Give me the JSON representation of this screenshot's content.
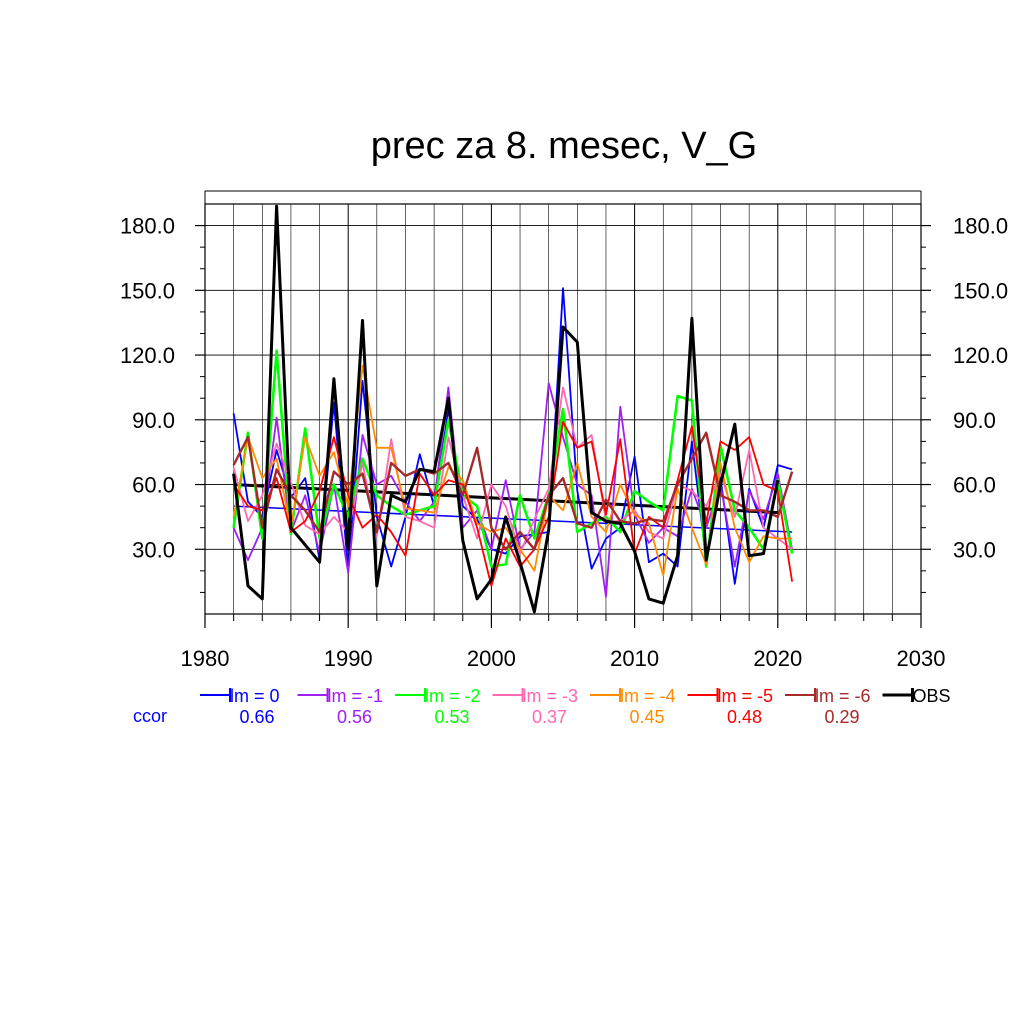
{
  "chart_data": {
    "type": "line",
    "title": "prec za 8. mesec, V_G",
    "xlabel": "",
    "ylabel": "",
    "xlim": [
      1980,
      2030
    ],
    "ylim": [
      0,
      190
    ],
    "x_ticks": [
      "1980",
      "1990",
      "2000",
      "2010",
      "2020",
      "2030"
    ],
    "y_ticks": [
      "30.0",
      "60.0",
      "90.0",
      "120.0",
      "150.0",
      "180.0"
    ],
    "grid": true,
    "legend_position": "bottom",
    "ccor_label": "ccor",
    "years": [
      1982,
      1983,
      1984,
      1985,
      1986,
      1987,
      1988,
      1989,
      1990,
      1991,
      1992,
      1993,
      1994,
      1995,
      1996,
      1997,
      1998,
      1999,
      2000,
      2001,
      2002,
      2003,
      2004,
      2005,
      2006,
      2007,
      2008,
      2009,
      2010,
      2011,
      2012,
      2013,
      2014,
      2015,
      2016,
      2017,
      2018,
      2019,
      2020,
      2021
    ],
    "series": [
      {
        "name": "lm = 0",
        "ccor": "0.66",
        "color": "#0000ff",
        "width": 1.8,
        "values": [
          93,
          52,
          45,
          76,
          54,
          63,
          25,
          98,
          20,
          108,
          45,
          22,
          45,
          74,
          50,
          95,
          50,
          44,
          30,
          28,
          36,
          37,
          38,
          151,
          57,
          21,
          35,
          40,
          73,
          24,
          28,
          22,
          80,
          25,
          63,
          14,
          58,
          40,
          69,
          67
        ],
        "trend": {
          "x": [
            1982,
            2021
          ],
          "y": [
            50,
            38
          ]
        }
      },
      {
        "name": "lm = -1",
        "ccor": "0.56",
        "color": "#a020f0",
        "width": 1.8,
        "values": [
          40,
          25,
          40,
          91,
          38,
          55,
          28,
          60,
          19,
          83,
          60,
          64,
          52,
          43,
          52,
          105,
          40,
          48,
          30,
          62,
          30,
          38,
          107,
          82,
          60,
          55,
          8,
          96,
          46,
          33,
          40,
          36,
          58,
          40,
          60,
          22,
          57,
          44,
          65,
          30
        ]
      },
      {
        "name": "lm = -2",
        "ccor": "0.53",
        "color": "#00ff00",
        "width": 2.6,
        "values": [
          40,
          84,
          35,
          122,
          37,
          86,
          35,
          60,
          45,
          72,
          55,
          50,
          46,
          48,
          50,
          90,
          55,
          50,
          22,
          23,
          55,
          35,
          55,
          95,
          38,
          42,
          45,
          38,
          57,
          52,
          48,
          101,
          99,
          22,
          78,
          48,
          40,
          30,
          62,
          28
        ]
      },
      {
        "name": "lm = -3",
        "ccor": "0.37",
        "color": "#ff69b4",
        "width": 1.8,
        "values": [
          68,
          43,
          55,
          79,
          61,
          41,
          37,
          45,
          38,
          70,
          36,
          81,
          45,
          43,
          40,
          82,
          55,
          35,
          60,
          50,
          28,
          44,
          58,
          105,
          77,
          83,
          43,
          43,
          48,
          38,
          35,
          60,
          57,
          50,
          65,
          45,
          76,
          40,
          35,
          30
        ]
      },
      {
        "name": "lm = -4",
        "ccor": "0.45",
        "color": "#ff8c00",
        "width": 1.8,
        "values": [
          45,
          82,
          63,
          72,
          40,
          82,
          64,
          75,
          50,
          115,
          77,
          77,
          49,
          48,
          47,
          68,
          62,
          42,
          38,
          40,
          30,
          20,
          55,
          48,
          70,
          45,
          38,
          60,
          46,
          42,
          18,
          58,
          40,
          23,
          70,
          40,
          24,
          36,
          35,
          35
        ]
      },
      {
        "name": "lm = -5",
        "ccor": "0.48",
        "color": "#ff0000",
        "width": 1.8,
        "values": [
          60,
          50,
          48,
          63,
          38,
          43,
          57,
          82,
          55,
          40,
          46,
          38,
          27,
          65,
          55,
          62,
          60,
          40,
          13,
          35,
          22,
          30,
          45,
          89,
          77,
          80,
          46,
          81,
          28,
          45,
          40,
          62,
          87,
          42,
          80,
          76,
          82,
          60,
          57,
          15
        ]
      },
      {
        "name": "lm = -6",
        "ccor": "0.29",
        "color": "#a52a2a",
        "width": 2.4,
        "values": [
          69,
          82,
          40,
          67,
          55,
          48,
          38,
          66,
          60,
          65,
          38,
          70,
          64,
          67,
          65,
          70,
          55,
          77,
          40,
          30,
          38,
          30,
          55,
          63,
          42,
          40,
          53,
          43,
          42,
          44,
          43,
          60,
          72,
          84,
          55,
          52,
          48,
          48,
          45,
          66
        ]
      },
      {
        "name": "OBS",
        "ccor": "",
        "color": "#000000",
        "width": 3,
        "values": [
          65,
          13,
          7,
          189,
          40,
          32,
          24,
          109,
          30,
          136,
          13,
          55,
          52,
          67,
          66,
          100,
          34,
          7,
          16,
          45,
          24,
          1,
          39,
          133,
          126,
          47,
          43,
          42,
          29,
          7,
          5,
          27,
          137,
          25,
          60,
          88,
          27,
          28,
          62,
          null
        ],
        "trend": {
          "x": [
            1982,
            2020
          ],
          "y": [
            60,
            47
          ]
        }
      }
    ]
  }
}
